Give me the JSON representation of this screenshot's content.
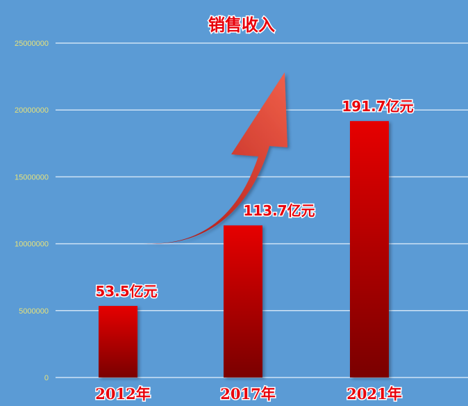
{
  "chart_data": {
    "type": "bar",
    "title": "销售收入",
    "categories": [
      "2012年",
      "2017年",
      "2021年"
    ],
    "values": [
      5350000,
      11370000,
      19170000
    ],
    "data_labels": [
      "53.5亿元",
      "113.7亿元",
      "191.7亿元"
    ],
    "xlabel": "",
    "ylabel": "",
    "ylim": [
      0,
      25000000
    ],
    "yticks": [
      "0",
      "5000000",
      "10000000",
      "15000000",
      "20000000",
      "25000000"
    ],
    "grid": true,
    "legend": "none",
    "annotation": "upward-trend-arrow",
    "colors": {
      "background": "#5b9bd5",
      "bar_top": "#e60000",
      "bar_bottom": "#7a0000",
      "gridline": "#cfe3f5",
      "tick_label": "#e6e27a",
      "label_text": "#e8000a"
    }
  }
}
